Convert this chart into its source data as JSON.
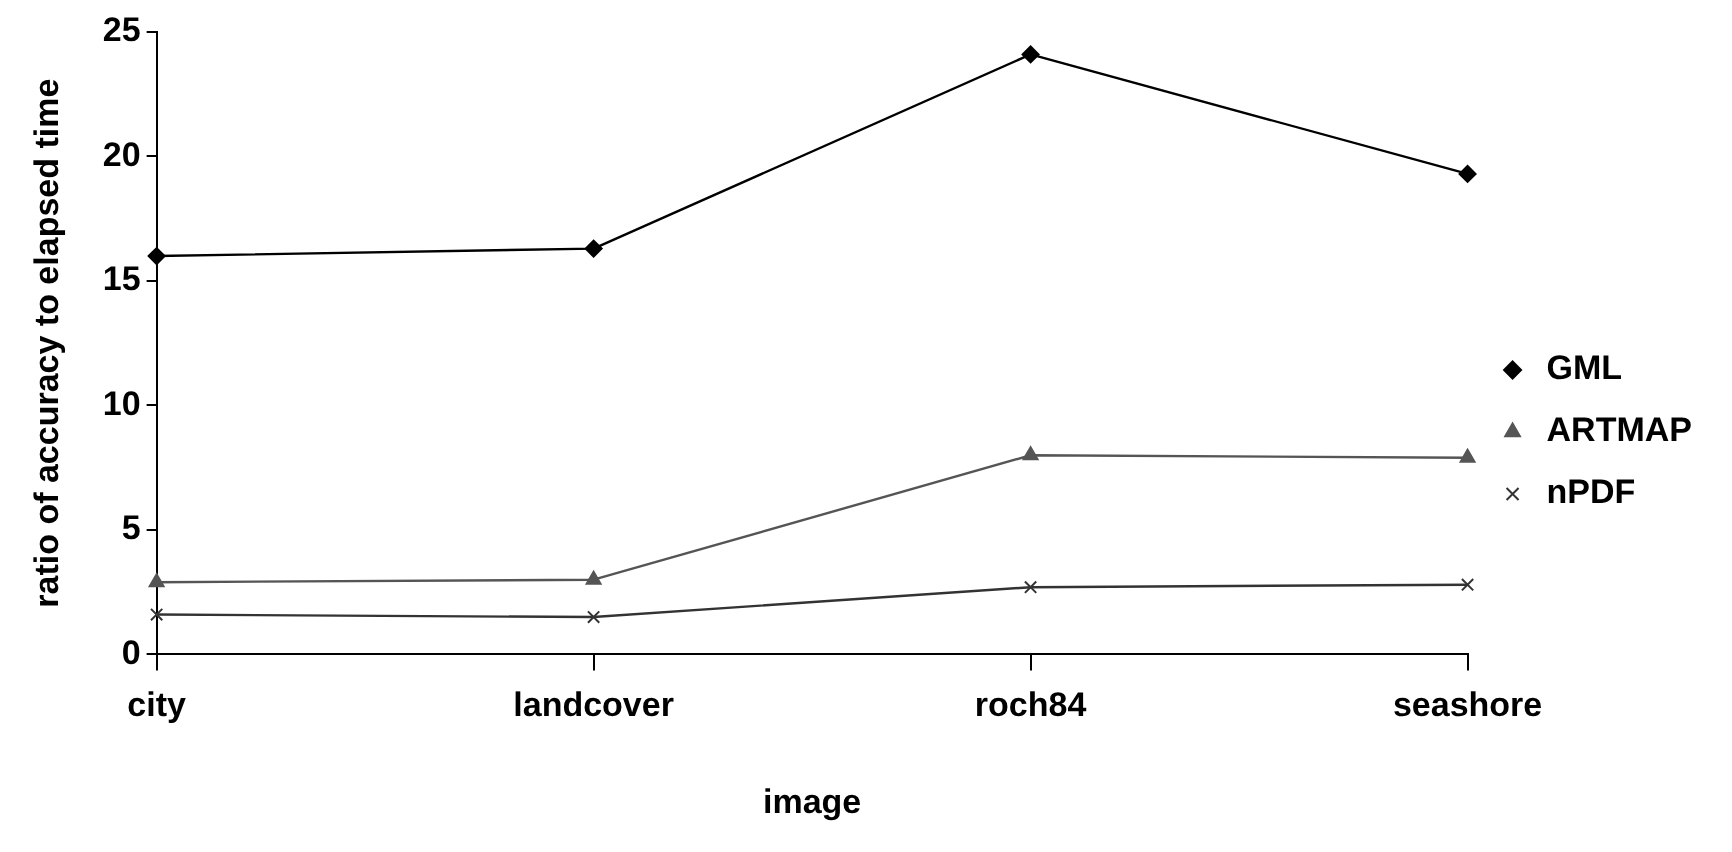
{
  "chart_data": {
    "type": "line",
    "xlabel": "image",
    "ylabel": "ratio of accuracy to elapsed time",
    "categories": [
      "city",
      "landcover",
      "roch84",
      "seashore"
    ],
    "series": [
      {
        "name": "GML",
        "color": "#000000",
        "marker": "diamond",
        "values": [
          16.0,
          16.3,
          24.1,
          19.3
        ]
      },
      {
        "name": "ARTMAP",
        "color": "#555555",
        "marker": "triangle",
        "values": [
          2.9,
          3.0,
          8.0,
          7.9
        ]
      },
      {
        "name": "nPDF",
        "color": "#333333",
        "marker": "cross",
        "values": [
          1.6,
          1.5,
          2.7,
          2.8
        ]
      }
    ],
    "ylim": [
      0,
      25
    ],
    "yticks": [
      0,
      5,
      10,
      15,
      20,
      25
    ],
    "grid": false,
    "legend": "right",
    "line_style": "solid"
  }
}
